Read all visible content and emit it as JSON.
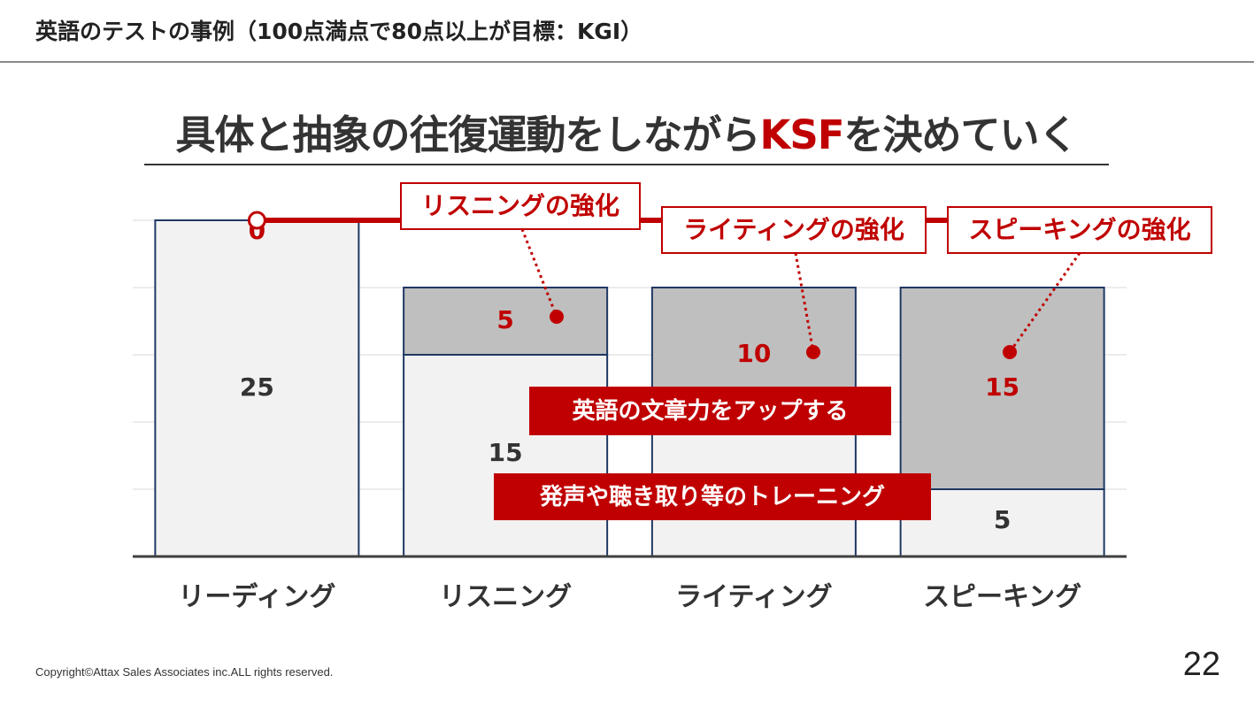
{
  "slide_title": "英語のテストの事例（100点満点で80点以上が目標：KGI）",
  "headline": {
    "text_main": "具体と抽象の往復運動をしながら",
    "text_accent": "KSF",
    "text_end": "を決めていく"
  },
  "colors": {
    "accent": "#c00000",
    "bar_fill_base": "#f2f2f2",
    "bar_fill_gain": "#bfbfbf",
    "bar_border": "#1f3864",
    "grid": "#d9d9d9",
    "axis": "#404040",
    "text": "#333333"
  },
  "chart_data": {
    "type": "bar",
    "stacked": true,
    "categories": [
      "リーディング",
      "リスニング",
      "ライティング",
      "スピーキング"
    ],
    "series": [
      {
        "values": [
          25,
          15,
          10,
          5
        ]
      },
      {
        "values": [
          0,
          5,
          10,
          15
        ]
      }
    ],
    "base_labels": [
      "25",
      "15",
      "",
      "5"
    ],
    "gain_labels": [
      "0",
      "5",
      "10",
      "15"
    ],
    "target_line": {
      "value": 25,
      "points": [
        "リーディング",
        "リスニング",
        "ライティング",
        "スピーキング"
      ]
    },
    "ylim": [
      0,
      25
    ],
    "ytick_step": 5,
    "grid": true,
    "callouts": [
      {
        "text": "リスニングの強化",
        "category": "リスニング"
      },
      {
        "text": "ライティングの強化",
        "category": "ライティング"
      },
      {
        "text": "スピーキングの強化",
        "category": "スピーキング"
      }
    ],
    "banners": [
      "英語の文章力をアップする",
      "発声や聴き取り等のトレーニング"
    ]
  },
  "footer": {
    "copyright": "Copyright©Attax Sales Associates inc.ALL rights reserved.",
    "page_number": "22"
  }
}
